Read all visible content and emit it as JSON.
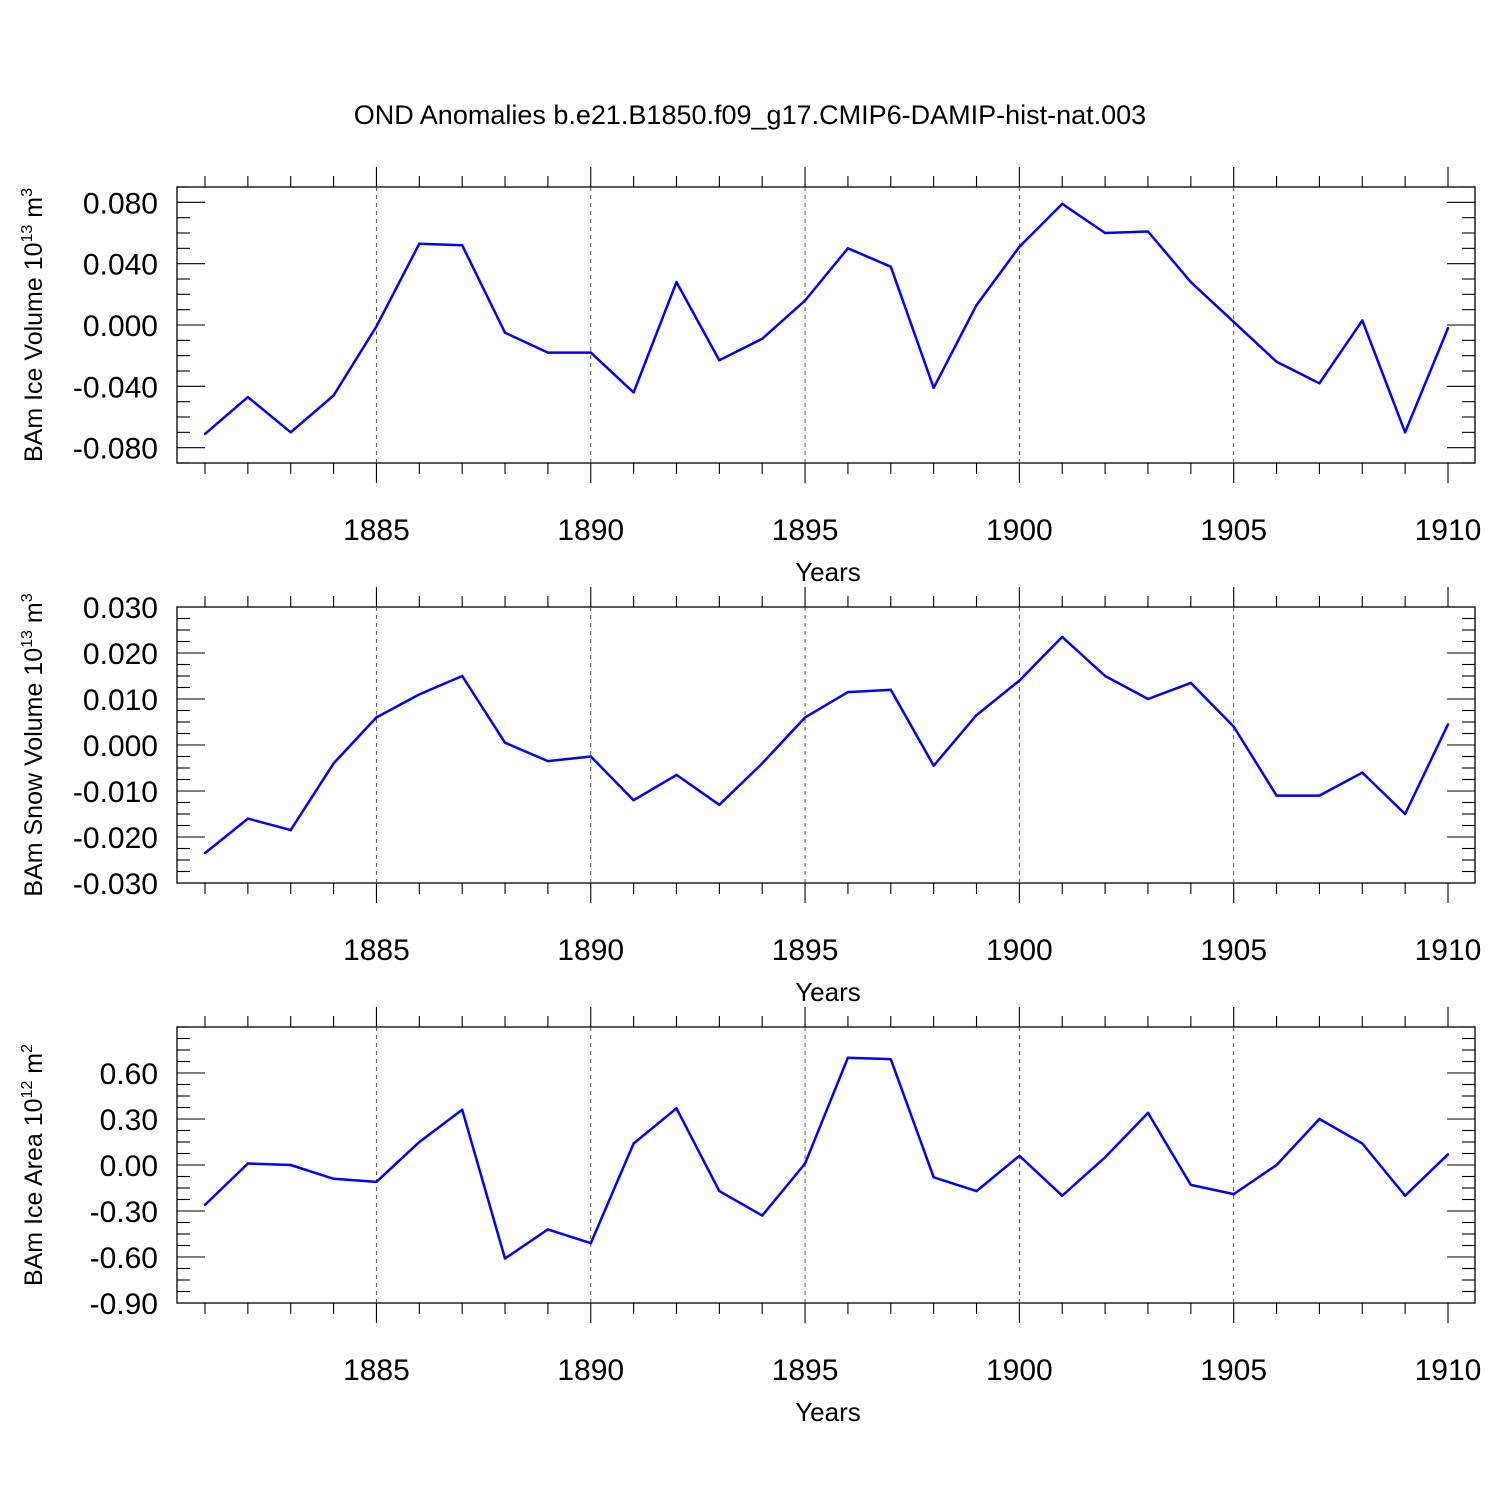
{
  "title": "OND Anomalies b.e21.B1850.f09_g17.CMIP6-DAMIP-hist-nat.003",
  "colors": {
    "line": "#0000ff",
    "grid": "#555555",
    "axis": "#000000"
  },
  "chart_data": [
    {
      "type": "line",
      "ylabel": {
        "prefix": "BAm Ice Volume 10",
        "exponent": "13",
        "unit": " m",
        "unit_exponent": "3"
      },
      "xlabel": "Years",
      "xlim": [
        1881,
        1910
      ],
      "ylim": [
        -0.09,
        0.09
      ],
      "xticks": [
        "1885",
        "1890",
        "1895",
        "1900",
        "1905",
        "1910"
      ],
      "yticks": [
        "0.080",
        "0.040",
        "0.000",
        "-0.040",
        "-0.080"
      ],
      "grid": "x-dashed at major ticks",
      "x": [
        1881,
        1882,
        1883,
        1884,
        1885,
        1886,
        1887,
        1888,
        1889,
        1890,
        1891,
        1892,
        1893,
        1894,
        1895,
        1896,
        1897,
        1898,
        1899,
        1900,
        1901,
        1902,
        1903,
        1904,
        1905,
        1906,
        1907,
        1908,
        1909,
        1910
      ],
      "values": [
        -0.071,
        -0.047,
        -0.07,
        -0.046,
        -0.001,
        0.053,
        0.052,
        -0.005,
        -0.018,
        -0.018,
        -0.044,
        0.028,
        -0.023,
        -0.009,
        0.016,
        0.05,
        0.038,
        -0.041,
        0.013,
        0.051,
        0.079,
        0.06,
        0.061,
        0.028,
        0.002,
        -0.024,
        -0.038,
        0.003,
        -0.07,
        -0.002
      ]
    },
    {
      "type": "line",
      "ylabel": {
        "prefix": "BAm Snow Volume 10",
        "exponent": "13",
        "unit": " m",
        "unit_exponent": "3"
      },
      "xlabel": "Years",
      "xlim": [
        1881,
        1910
      ],
      "ylim": [
        -0.03,
        0.03
      ],
      "xticks": [
        "1885",
        "1890",
        "1895",
        "1900",
        "1905",
        "1910"
      ],
      "yticks": [
        "0.030",
        "0.020",
        "0.010",
        "0.000",
        "-0.010",
        "-0.020",
        "-0.030"
      ],
      "grid": "x-dashed at major ticks",
      "x": [
        1881,
        1882,
        1883,
        1884,
        1885,
        1886,
        1887,
        1888,
        1889,
        1890,
        1891,
        1892,
        1893,
        1894,
        1895,
        1896,
        1897,
        1898,
        1899,
        1900,
        1901,
        1902,
        1903,
        1904,
        1905,
        1906,
        1907,
        1908,
        1909,
        1910
      ],
      "values": [
        -0.0235,
        -0.016,
        -0.0185,
        -0.004,
        0.006,
        0.011,
        0.015,
        0.0005,
        -0.0035,
        -0.0025,
        -0.012,
        -0.0065,
        -0.013,
        -0.004,
        0.006,
        0.0115,
        0.012,
        -0.0045,
        0.0065,
        0.014,
        0.0235,
        0.015,
        0.01,
        0.0135,
        0.004,
        -0.011,
        -0.011,
        -0.006,
        -0.015,
        0.0045
      ]
    },
    {
      "type": "line",
      "ylabel": {
        "prefix": "BAm Ice Area 10",
        "exponent": "12",
        "unit": " m",
        "unit_exponent": "2"
      },
      "xlabel": "Years",
      "xlim": [
        1881,
        1910
      ],
      "ylim": [
        -0.9,
        0.9
      ],
      "xticks": [
        "1885",
        "1890",
        "1895",
        "1900",
        "1905",
        "1910"
      ],
      "yticks": [
        "0.60",
        "0.30",
        "0.00",
        "-0.30",
        "-0.60",
        "-0.90"
      ],
      "grid": "x-dashed at major ticks",
      "x": [
        1881,
        1882,
        1883,
        1884,
        1885,
        1886,
        1887,
        1888,
        1889,
        1890,
        1891,
        1892,
        1893,
        1894,
        1895,
        1896,
        1897,
        1898,
        1899,
        1900,
        1901,
        1902,
        1903,
        1904,
        1905,
        1906,
        1907,
        1908,
        1909,
        1910
      ],
      "values": [
        -0.26,
        0.01,
        0.0,
        -0.09,
        -0.11,
        0.15,
        0.36,
        -0.61,
        -0.42,
        -0.51,
        0.14,
        0.37,
        -0.17,
        -0.33,
        0.01,
        0.7,
        0.69,
        -0.08,
        -0.17,
        0.06,
        -0.2,
        0.05,
        0.34,
        -0.13,
        -0.19,
        0.0,
        0.3,
        0.14,
        -0.2,
        0.07
      ]
    }
  ]
}
